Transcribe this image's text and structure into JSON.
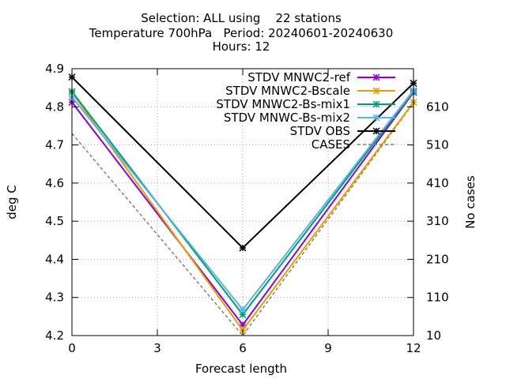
{
  "title_lines": [
    "Selection: ALL using    22 stations",
    "Temperature 700hPa   Period: 20240601-20240630",
    "Hours: 12"
  ],
  "chart_data": {
    "type": "line",
    "xlabel": "Forecast length",
    "ylabel": "deg C",
    "y2label": "No cases",
    "xlim": [
      0,
      12
    ],
    "ylim": [
      4.2,
      4.9
    ],
    "y2lim": [
      10,
      710
    ],
    "xticks": [
      "0",
      "3",
      "6",
      "9",
      "12"
    ],
    "yticks": [
      "4.2",
      "4.3",
      "4.4",
      "4.5",
      "4.6",
      "4.7",
      "4.8",
      "4.9"
    ],
    "y2ticks": [
      "10",
      "110",
      "210",
      "310",
      "410",
      "510",
      "610"
    ],
    "grid": true,
    "legend_position": "top-right",
    "series": [
      {
        "name": "STDV MNWC2-ref",
        "color": "#9400d3",
        "marker": "x",
        "axis": "y",
        "x": [
          0,
          6,
          12
        ],
        "values": [
          4.812,
          4.228,
          4.838
        ]
      },
      {
        "name": "STDV MNWC2-Bscale",
        "color": "#e69f00",
        "marker": "x",
        "axis": "y",
        "x": [
          0,
          6,
          12
        ],
        "values": [
          4.838,
          4.214,
          4.812
        ]
      },
      {
        "name": "STDV MNWC2-Bs-mix1",
        "color": "#009e73",
        "marker": "x",
        "axis": "y",
        "x": [
          0,
          6,
          12
        ],
        "values": [
          4.84,
          4.255,
          4.84
        ]
      },
      {
        "name": "STDV MNWC-Bs-mix2",
        "color": "#56b4e9",
        "marker": "x",
        "axis": "y",
        "x": [
          0,
          6,
          12
        ],
        "values": [
          4.826,
          4.268,
          4.843
        ]
      },
      {
        "name": "STDV OBS",
        "color": "#000000",
        "marker": "x",
        "axis": "y",
        "x": [
          0,
          6,
          12
        ],
        "values": [
          4.878,
          4.43,
          4.862
        ]
      },
      {
        "name": "CASES",
        "color": "#808080",
        "marker": "",
        "dash": true,
        "axis": "y2",
        "x": [
          0,
          6,
          12
        ],
        "values": [
          540,
          10,
          620
        ]
      }
    ]
  }
}
